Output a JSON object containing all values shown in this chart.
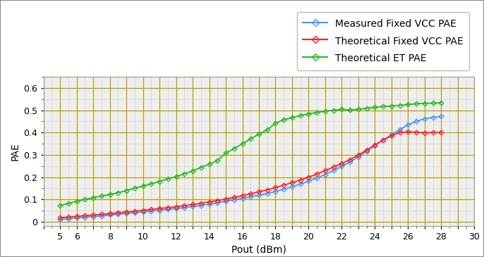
{
  "xlabel": "Pout (dBm)",
  "ylabel": "PAE",
  "xlim": [
    4,
    30
  ],
  "ylim": [
    -0.02,
    0.65
  ],
  "yticks": [
    0.0,
    0.1,
    0.2,
    0.3,
    0.4,
    0.5,
    0.6
  ],
  "fig_bg_color": "#ffffff",
  "plot_bg_color": "#eeeeee",
  "grid_color_major": "#b8a000",
  "measured_fixed_vcc_color": "#4499ff",
  "theoretical_fixed_vcc_color": "#ff2222",
  "theoretical_et_color": "#22bb22",
  "measured_fixed_vcc_x": [
    5,
    5.5,
    6,
    6.5,
    7,
    7.5,
    8,
    8.5,
    9,
    9.5,
    10,
    10.5,
    11,
    11.5,
    12,
    12.5,
    13,
    13.5,
    14,
    14.5,
    15,
    15.5,
    16,
    16.5,
    17,
    17.5,
    18,
    18.5,
    19,
    19.5,
    20,
    20.5,
    21,
    21.5,
    22,
    22.5,
    23,
    23.5,
    24,
    24.5,
    25,
    25.5,
    26,
    26.5,
    27,
    27.5,
    28
  ],
  "measured_fixed_vcc_y": [
    0.01,
    0.013,
    0.017,
    0.02,
    0.023,
    0.026,
    0.03,
    0.033,
    0.037,
    0.04,
    0.044,
    0.047,
    0.051,
    0.055,
    0.059,
    0.063,
    0.068,
    0.073,
    0.079,
    0.085,
    0.092,
    0.098,
    0.105,
    0.112,
    0.119,
    0.127,
    0.136,
    0.146,
    0.157,
    0.169,
    0.182,
    0.196,
    0.212,
    0.229,
    0.248,
    0.268,
    0.291,
    0.316,
    0.342,
    0.366,
    0.39,
    0.413,
    0.435,
    0.45,
    0.462,
    0.468,
    0.472
  ],
  "theoretical_fixed_vcc_x": [
    5,
    5.5,
    6,
    6.5,
    7,
    7.5,
    8,
    8.5,
    9,
    9.5,
    10,
    10.5,
    11,
    11.5,
    12,
    12.5,
    13,
    13.5,
    14,
    14.5,
    15,
    15.5,
    16,
    16.5,
    17,
    17.5,
    18,
    18.5,
    19,
    19.5,
    20,
    20.5,
    21,
    21.5,
    22,
    22.5,
    23,
    23.5,
    24,
    24.5,
    25,
    25.5,
    26,
    26.5,
    27,
    27.5,
    28
  ],
  "theoretical_fixed_vcc_y": [
    0.018,
    0.021,
    0.024,
    0.027,
    0.03,
    0.033,
    0.036,
    0.04,
    0.044,
    0.047,
    0.051,
    0.055,
    0.059,
    0.063,
    0.067,
    0.072,
    0.077,
    0.083,
    0.089,
    0.095,
    0.102,
    0.109,
    0.117,
    0.125,
    0.134,
    0.143,
    0.153,
    0.164,
    0.175,
    0.187,
    0.2,
    0.214,
    0.229,
    0.245,
    0.261,
    0.279,
    0.299,
    0.321,
    0.344,
    0.366,
    0.386,
    0.4,
    0.403,
    0.401,
    0.399,
    0.4,
    0.401
  ],
  "theoretical_et_x": [
    5,
    5.5,
    6,
    6.5,
    7,
    7.5,
    8,
    8.5,
    9,
    9.5,
    10,
    10.5,
    11,
    11.5,
    12,
    12.5,
    13,
    13.5,
    14,
    14.5,
    15,
    15.5,
    16,
    16.5,
    17,
    17.5,
    18,
    18.5,
    19,
    19.5,
    20,
    20.5,
    21,
    21.5,
    22,
    22.5,
    23,
    23.5,
    24,
    24.5,
    25,
    25.5,
    26,
    26.5,
    27,
    27.5,
    28
  ],
  "theoretical_et_y": [
    0.073,
    0.082,
    0.091,
    0.1,
    0.108,
    0.115,
    0.122,
    0.13,
    0.14,
    0.15,
    0.16,
    0.17,
    0.181,
    0.192,
    0.203,
    0.215,
    0.228,
    0.243,
    0.258,
    0.274,
    0.308,
    0.328,
    0.35,
    0.372,
    0.393,
    0.412,
    0.442,
    0.457,
    0.467,
    0.476,
    0.484,
    0.49,
    0.496,
    0.5,
    0.504,
    0.501,
    0.504,
    0.509,
    0.513,
    0.517,
    0.519,
    0.522,
    0.526,
    0.529,
    0.531,
    0.532,
    0.534
  ],
  "legend_labels": [
    "Measured Fixed VCC PAE",
    "Theoretical Fixed VCC PAE",
    "Theoretical ET PAE"
  ],
  "legend_colors": [
    "#4499ff",
    "#ff2222",
    "#22bb22"
  ],
  "marker": "D",
  "marker_size": 3.5,
  "linewidth": 1.3
}
